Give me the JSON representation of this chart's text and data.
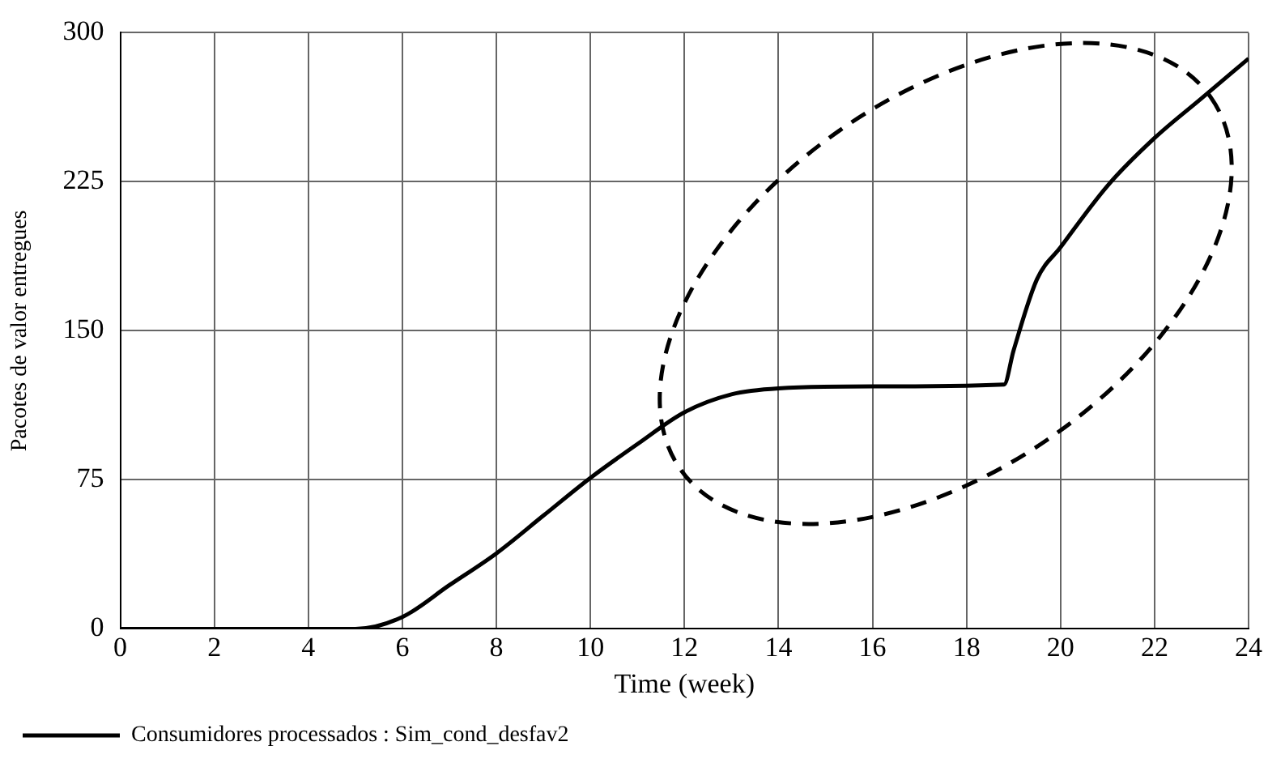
{
  "chart_data": {
    "type": "line",
    "xlabel": "Time (week)",
    "ylabel": "Pacotes de valor entregues",
    "xlim": [
      0,
      24
    ],
    "xticks": [
      0,
      2,
      4,
      6,
      8,
      10,
      12,
      14,
      16,
      18,
      20,
      22,
      24
    ],
    "ylim": [
      0,
      300
    ],
    "yticks": [
      0,
      75,
      150,
      225,
      300
    ],
    "grid": true,
    "legend": "bottom",
    "marker": "none",
    "line_style": "solid",
    "series": [
      {
        "name": "Consumidores processados : Sim_cond_desfav2",
        "color": "#000000",
        "x": [
          0,
          5,
          6,
          7,
          8,
          9,
          10,
          11,
          12,
          13,
          14,
          16,
          18.8,
          19,
          19.5,
          20,
          21,
          22,
          23,
          24
        ],
        "values": [
          0,
          0,
          6,
          22,
          38,
          57,
          76,
          93,
          109,
          118,
          121,
          122,
          123,
          140,
          176,
          192,
          223,
          247,
          267,
          287
        ]
      }
    ]
  }
}
